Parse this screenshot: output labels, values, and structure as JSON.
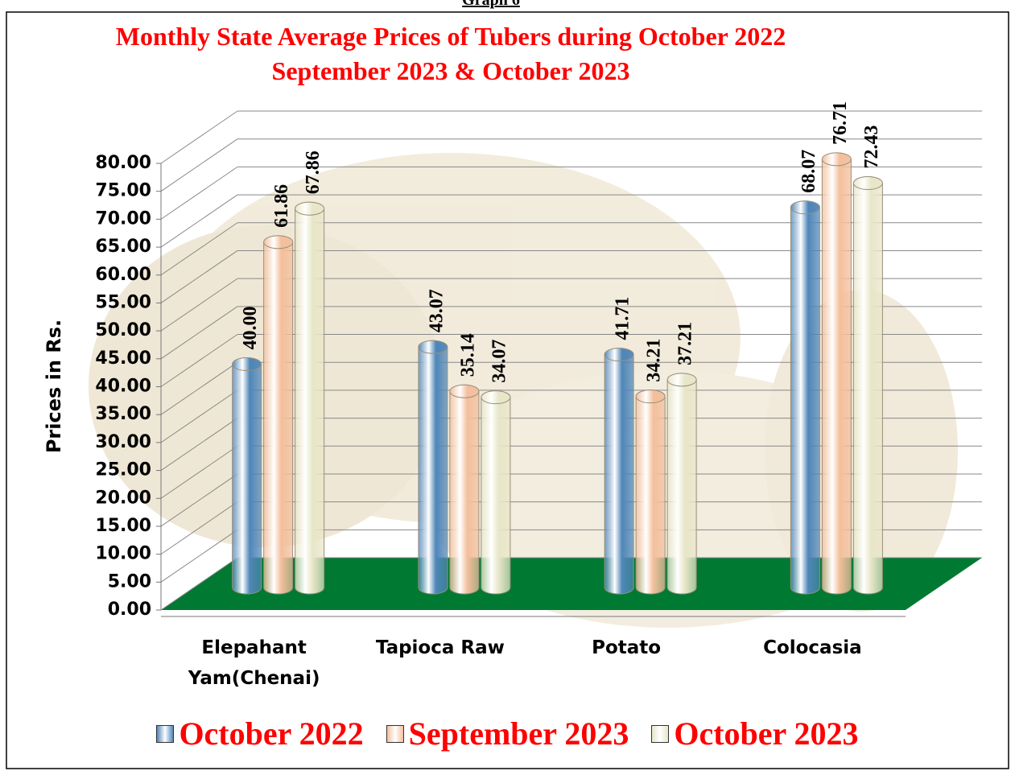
{
  "header": "Graph 6",
  "chart_data": {
    "type": "bar3d",
    "title": [
      "Monthly State Average  Prices of Tubers during  October 2022",
      "September 2023  &  October 2023"
    ],
    "ylabel": "Prices in Rs.",
    "categories": [
      "Elepahant Yam(Chenai)",
      "Tapioca Raw",
      "Potato",
      "Colocasia"
    ],
    "series": [
      {
        "name": "October 2022",
        "color": "#4f86b8",
        "values": [
          40,
          43.07,
          41.71,
          68.07
        ],
        "value_labels": [
          "40.00",
          "43.07",
          "41.71",
          "68.07"
        ]
      },
      {
        "name": "September 2023",
        "color": "#f3bf9c",
        "values": [
          61.86,
          35.14,
          34.21,
          76.71
        ],
        "value_labels": [
          "61.86",
          "35.14",
          "34.21",
          "76.71"
        ]
      },
      {
        "name": "October 2023",
        "color": "#e8e6c8",
        "values": [
          67.86,
          34.07,
          37.21,
          72.43
        ],
        "value_labels": [
          "67.86",
          "34.07",
          "37.21",
          "72.43"
        ]
      }
    ],
    "ylim": [
      0,
      80
    ],
    "yticks": [
      {
        "value": 0,
        "label": "0.00"
      },
      {
        "value": 5,
        "label": "5.00"
      },
      {
        "value": 10,
        "label": "10.00"
      },
      {
        "value": 15,
        "label": "15.00"
      },
      {
        "value": 20,
        "label": "20.00"
      },
      {
        "value": 25,
        "label": "25.00"
      },
      {
        "value": 30,
        "label": "30.00"
      },
      {
        "value": 35,
        "label": "35.00"
      },
      {
        "value": 40,
        "label": "40.00"
      },
      {
        "value": 45,
        "label": "45.00"
      },
      {
        "value": 50,
        "label": "50.00"
      },
      {
        "value": 55,
        "label": "55.00"
      },
      {
        "value": 60,
        "label": "60.00"
      },
      {
        "value": 65,
        "label": "65.00"
      },
      {
        "value": 70,
        "label": "70.00"
      },
      {
        "value": 75,
        "label": "75.00"
      },
      {
        "value": 80,
        "label": "80.00"
      }
    ],
    "grid": true,
    "floor_color": "#007a33",
    "legend": "bottom"
  }
}
